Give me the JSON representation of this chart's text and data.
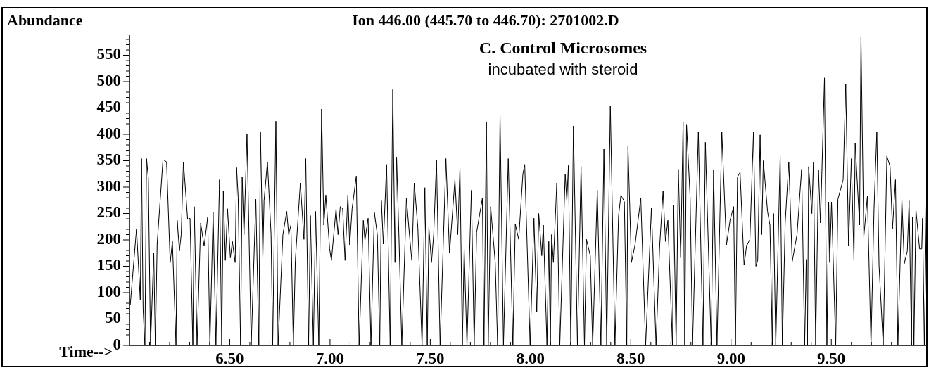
{
  "chart_data": {
    "type": "line",
    "title": "Ion 446.00 (445.70 to 446.70): 2701002.D",
    "ylabel": "Abundance",
    "xlabel": "Time-->",
    "annotations": [
      "C. Control Microsomes",
      "incubated with steroid"
    ],
    "line_style": "solid",
    "color": "#000000",
    "xlim": [
      6.0,
      9.98
    ],
    "ylim": [
      0,
      588
    ],
    "xticks": [
      {
        "value": 6.1,
        "label": null
      },
      {
        "value": 6.2,
        "label": null
      },
      {
        "value": 6.3,
        "label": null
      },
      {
        "value": 6.4,
        "label": null
      },
      {
        "value": 6.5,
        "label": "6.50"
      },
      {
        "value": 6.6,
        "label": null
      },
      {
        "value": 6.7,
        "label": null
      },
      {
        "value": 6.8,
        "label": null
      },
      {
        "value": 6.9,
        "label": null
      },
      {
        "value": 7.0,
        "label": "7.00"
      },
      {
        "value": 7.1,
        "label": null
      },
      {
        "value": 7.2,
        "label": null
      },
      {
        "value": 7.3,
        "label": null
      },
      {
        "value": 7.4,
        "label": null
      },
      {
        "value": 7.5,
        "label": "7.50"
      },
      {
        "value": 7.6,
        "label": null
      },
      {
        "value": 7.7,
        "label": null
      },
      {
        "value": 7.8,
        "label": null
      },
      {
        "value": 7.9,
        "label": null
      },
      {
        "value": 8.0,
        "label": "8.00"
      },
      {
        "value": 8.1,
        "label": null
      },
      {
        "value": 8.2,
        "label": null
      },
      {
        "value": 8.3,
        "label": null
      },
      {
        "value": 8.4,
        "label": null
      },
      {
        "value": 8.5,
        "label": "8.50"
      },
      {
        "value": 8.6,
        "label": null
      },
      {
        "value": 8.7,
        "label": null
      },
      {
        "value": 8.8,
        "label": null
      },
      {
        "value": 8.9,
        "label": null
      },
      {
        "value": 9.0,
        "label": "9.00"
      },
      {
        "value": 9.1,
        "label": null
      },
      {
        "value": 9.2,
        "label": null
      },
      {
        "value": 9.3,
        "label": null
      },
      {
        "value": 9.4,
        "label": null
      },
      {
        "value": 9.5,
        "label": "9.50"
      },
      {
        "value": 9.6,
        "label": null
      },
      {
        "value": 9.7,
        "label": null
      },
      {
        "value": 9.8,
        "label": null
      },
      {
        "value": 9.9,
        "label": null
      }
    ],
    "yticks": [
      0,
      {
        "value": 10,
        "label": null
      },
      {
        "value": 20,
        "label": null
      },
      {
        "value": 30,
        "label": null
      },
      {
        "value": 40,
        "label": null
      },
      50,
      {
        "value": 60,
        "label": null
      },
      {
        "value": 70,
        "label": null
      },
      {
        "value": 80,
        "label": null
      },
      {
        "value": 90,
        "label": null
      },
      100,
      {
        "value": 110,
        "label": null
      },
      {
        "value": 120,
        "label": null
      },
      {
        "value": 130,
        "label": null
      },
      {
        "value": 140,
        "label": null
      },
      150,
      {
        "value": 160,
        "label": null
      },
      {
        "value": 170,
        "label": null
      },
      {
        "value": 180,
        "label": null
      },
      {
        "value": 190,
        "label": null
      },
      200,
      {
        "value": 210,
        "label": null
      },
      {
        "value": 220,
        "label": null
      },
      {
        "value": 230,
        "label": null
      },
      {
        "value": 240,
        "label": null
      },
      250,
      {
        "value": 260,
        "label": null
      },
      {
        "value": 270,
        "label": null
      },
      {
        "value": 280,
        "label": null
      },
      {
        "value": 290,
        "label": null
      },
      300,
      {
        "value": 310,
        "label": null
      },
      {
        "value": 320,
        "label": null
      },
      {
        "value": 330,
        "label": null
      },
      {
        "value": 340,
        "label": null
      },
      350,
      {
        "value": 360,
        "label": null
      },
      {
        "value": 370,
        "label": null
      },
      {
        "value": 380,
        "label": null
      },
      {
        "value": 390,
        "label": null
      },
      400,
      {
        "value": 410,
        "label": null
      },
      {
        "value": 420,
        "label": null
      },
      {
        "value": 430,
        "label": null
      },
      {
        "value": 440,
        "label": null
      },
      450,
      {
        "value": 460,
        "label": null
      },
      {
        "value": 470,
        "label": null
      },
      {
        "value": 480,
        "label": null
      },
      {
        "value": 490,
        "label": null
      },
      500,
      {
        "value": 510,
        "label": null
      },
      {
        "value": 520,
        "label": null
      },
      {
        "value": 530,
        "label": null
      },
      {
        "value": 540,
        "label": null
      },
      550,
      {
        "value": 560,
        "label": null
      },
      {
        "value": 570,
        "label": null
      },
      {
        "value": 580,
        "label": null
      }
    ],
    "x": [
      6.004,
      6.035,
      6.054,
      6.06,
      6.068,
      6.077,
      6.085,
      6.094,
      6.105,
      6.121,
      6.129,
      6.138,
      6.167,
      6.185,
      6.203,
      6.214,
      6.232,
      6.238,
      6.249,
      6.258,
      6.269,
      6.29,
      6.302,
      6.316,
      6.323,
      6.337,
      6.355,
      6.372,
      6.39,
      6.401,
      6.417,
      6.431,
      6.449,
      6.46,
      6.468,
      6.478,
      6.489,
      6.503,
      6.513,
      6.527,
      6.534,
      6.542,
      6.554,
      6.562,
      6.571,
      6.586,
      6.607,
      6.63,
      6.645,
      6.653,
      6.665,
      6.671,
      6.688,
      6.706,
      6.714,
      6.73,
      6.741,
      6.765,
      6.784,
      6.794,
      6.805,
      6.817,
      6.827,
      6.852,
      6.87,
      6.879,
      6.893,
      6.902,
      6.917,
      6.928,
      6.944,
      6.958,
      6.969,
      6.979,
      6.998,
      7.007,
      7.03,
      7.04,
      7.051,
      7.063,
      7.075,
      7.089,
      7.098,
      7.11,
      7.131,
      7.145,
      7.166,
      7.174,
      7.19,
      7.204,
      7.221,
      7.236,
      7.248,
      7.256,
      7.266,
      7.282,
      7.3,
      7.313,
      7.324,
      7.332,
      7.344,
      7.358,
      7.381,
      7.397,
      7.408,
      7.42,
      7.438,
      7.459,
      7.473,
      7.485,
      7.493,
      7.506,
      7.517,
      7.531,
      7.549,
      7.578,
      7.596,
      7.623,
      7.637,
      7.648,
      7.66,
      7.669,
      7.683,
      7.705,
      7.719,
      7.731,
      7.76,
      7.768,
      7.78,
      7.789,
      7.801,
      7.824,
      7.836,
      7.848,
      7.865,
      7.889,
      7.912,
      7.924,
      7.941,
      7.962,
      7.971,
      7.998,
      8.017,
      8.031,
      8.041,
      8.056,
      8.064,
      8.082,
      8.091,
      8.099,
      8.105,
      8.114,
      8.131,
      8.146,
      8.173,
      8.181,
      8.189,
      8.201,
      8.214,
      8.234,
      8.252,
      8.269,
      8.279,
      8.298,
      8.31,
      8.333,
      8.351,
      8.366,
      8.38,
      8.398,
      8.421,
      8.439,
      8.451,
      8.468,
      8.48,
      8.486,
      8.503,
      8.521,
      8.55,
      8.574,
      8.603,
      8.626,
      8.644,
      8.661,
      8.673,
      8.685,
      8.708,
      8.714,
      8.726,
      8.737,
      8.749,
      8.761,
      8.769,
      8.778,
      8.796,
      8.808,
      8.837,
      8.86,
      8.872,
      8.901,
      8.913,
      8.93,
      8.954,
      8.977,
      8.995,
      9.013,
      9.022,
      9.032,
      9.045,
      9.065,
      9.077,
      9.094,
      9.112,
      9.124,
      9.133,
      9.145,
      9.153,
      9.161,
      9.182,
      9.194,
      9.206,
      9.212,
      9.223,
      9.245,
      9.256,
      9.27,
      9.288,
      9.305,
      9.329,
      9.352,
      9.367,
      9.375,
      9.381,
      9.387,
      9.403,
      9.411,
      9.422,
      9.436,
      9.446,
      9.466,
      9.478,
      9.487,
      9.492,
      9.501,
      9.522,
      9.533,
      9.559,
      9.572,
      9.586,
      9.6,
      9.613,
      9.619,
      9.641,
      9.648,
      9.662,
      9.68,
      9.698,
      9.713,
      9.727,
      9.738,
      9.759,
      9.777,
      9.793,
      9.805,
      9.82,
      9.832,
      9.852,
      9.864,
      9.879,
      9.888,
      9.9,
      9.905,
      9.912,
      9.922,
      9.94,
      9.951,
      9.955,
      9.964,
      9.976
    ],
    "values": [
      77,
      221,
      86,
      354,
      68,
      0,
      354,
      317,
      0,
      175,
      0,
      192,
      352,
      348,
      157,
      197,
      0,
      237,
      179,
      210,
      348,
      239,
      241,
      0,
      263,
      0,
      232,
      188,
      243,
      0,
      252,
      0,
      314,
      0,
      292,
      161,
      259,
      166,
      197,
      157,
      337,
      281,
      0,
      319,
      210,
      401,
      0,
      277,
      0,
      405,
      166,
      274,
      348,
      210,
      0,
      425,
      0,
      210,
      254,
      210,
      228,
      0,
      161,
      308,
      201,
      354,
      0,
      246,
      0,
      254,
      0,
      448,
      228,
      285,
      183,
      161,
      259,
      210,
      263,
      259,
      161,
      285,
      190,
      259,
      321,
      0,
      237,
      199,
      241,
      0,
      252,
      210,
      0,
      274,
      192,
      343,
      0,
      485,
      157,
      357,
      201,
      0,
      279,
      206,
      161,
      308,
      223,
      0,
      299,
      0,
      223,
      157,
      210,
      352,
      0,
      354,
      175,
      314,
      210,
      337,
      0,
      183,
      0,
      294,
      0,
      214,
      279,
      0,
      423,
      0,
      263,
      157,
      0,
      436,
      0,
      354,
      0,
      230,
      201,
      325,
      343,
      0,
      241,
      63,
      250,
      170,
      228,
      0,
      197,
      0,
      210,
      157,
      308,
      0,
      325,
      274,
      341,
      0,
      416,
      0,
      339,
      0,
      201,
      170,
      0,
      294,
      0,
      372,
      0,
      454,
      0,
      246,
      285,
      272,
      0,
      377,
      157,
      190,
      279,
      0,
      261,
      0,
      188,
      292,
      197,
      237,
      0,
      266,
      0,
      334,
      166,
      423,
      0,
      419,
      281,
      0,
      405,
      0,
      385,
      0,
      332,
      0,
      405,
      190,
      237,
      263,
      0,
      319,
      328,
      152,
      188,
      201,
      405,
      150,
      161,
      399,
      210,
      350,
      254,
      228,
      0,
      250,
      0,
      359,
      0,
      232,
      348,
      159,
      210,
      334,
      0,
      163,
      0,
      339,
      250,
      348,
      0,
      332,
      232,
      507,
      0,
      272,
      157,
      272,
      0,
      277,
      314,
      496,
      188,
      354,
      161,
      383,
      228,
      585,
      206,
      283,
      0,
      259,
      405,
      152,
      0,
      359,
      339,
      221,
      314,
      0,
      277,
      155,
      179,
      274,
      0,
      243,
      0,
      257,
      183,
      183,
      241,
      0,
      299
    ]
  }
}
